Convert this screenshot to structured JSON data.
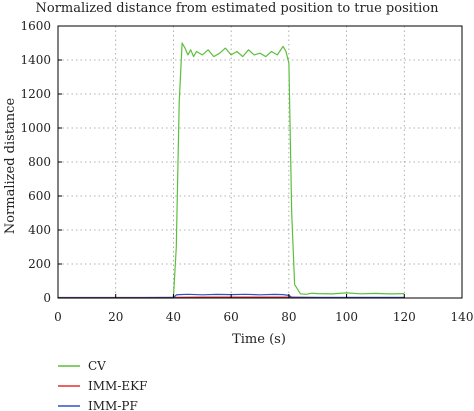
{
  "chart_data": {
    "type": "line",
    "title": "Normalized distance from estimated position to true position",
    "xlabel": "Time (s)",
    "ylabel": "Normalized distance",
    "xlim": [
      0,
      140
    ],
    "ylim": [
      0,
      1600
    ],
    "xticks": [
      0,
      20,
      40,
      60,
      80,
      100,
      120,
      140
    ],
    "yticks": [
      0,
      200,
      400,
      600,
      800,
      1000,
      1200,
      1400,
      1600
    ],
    "grid": true,
    "legend_position": "below-left",
    "series": [
      {
        "name": "CV",
        "color": "#5cbf3c",
        "x": [
          0,
          40,
          41,
          42,
          43,
          44,
          45,
          46,
          47,
          48,
          50,
          52,
          54,
          56,
          58,
          60,
          62,
          64,
          66,
          68,
          70,
          72,
          74,
          76,
          78,
          79,
          80,
          81,
          82,
          84,
          86,
          88,
          90,
          95,
          100,
          105,
          110,
          115,
          120
        ],
        "y": [
          0,
          0,
          300,
          1150,
          1500,
          1470,
          1430,
          1460,
          1420,
          1450,
          1430,
          1460,
          1420,
          1440,
          1470,
          1430,
          1450,
          1420,
          1460,
          1430,
          1440,
          1420,
          1450,
          1430,
          1480,
          1450,
          1380,
          500,
          80,
          25,
          22,
          28,
          26,
          24,
          30,
          25,
          27,
          24,
          26
        ]
      },
      {
        "name": "IMM-EKF",
        "color": "#e03030",
        "x": [
          0,
          10,
          20,
          30,
          40,
          50,
          60,
          70,
          80,
          90,
          100,
          110,
          120
        ],
        "y": [
          3,
          3,
          3,
          3,
          4,
          5,
          5,
          5,
          5,
          3,
          3,
          3,
          3
        ]
      },
      {
        "name": "IMM-PF",
        "color": "#3050c8",
        "x": [
          0,
          10,
          20,
          30,
          40,
          41,
          42,
          45,
          50,
          55,
          60,
          65,
          70,
          75,
          78,
          80,
          81,
          85,
          90,
          100,
          110,
          120
        ],
        "y": [
          2,
          2,
          2,
          2,
          3,
          18,
          20,
          22,
          19,
          21,
          20,
          22,
          19,
          21,
          20,
          15,
          4,
          3,
          3,
          3,
          3,
          3
        ]
      }
    ]
  }
}
